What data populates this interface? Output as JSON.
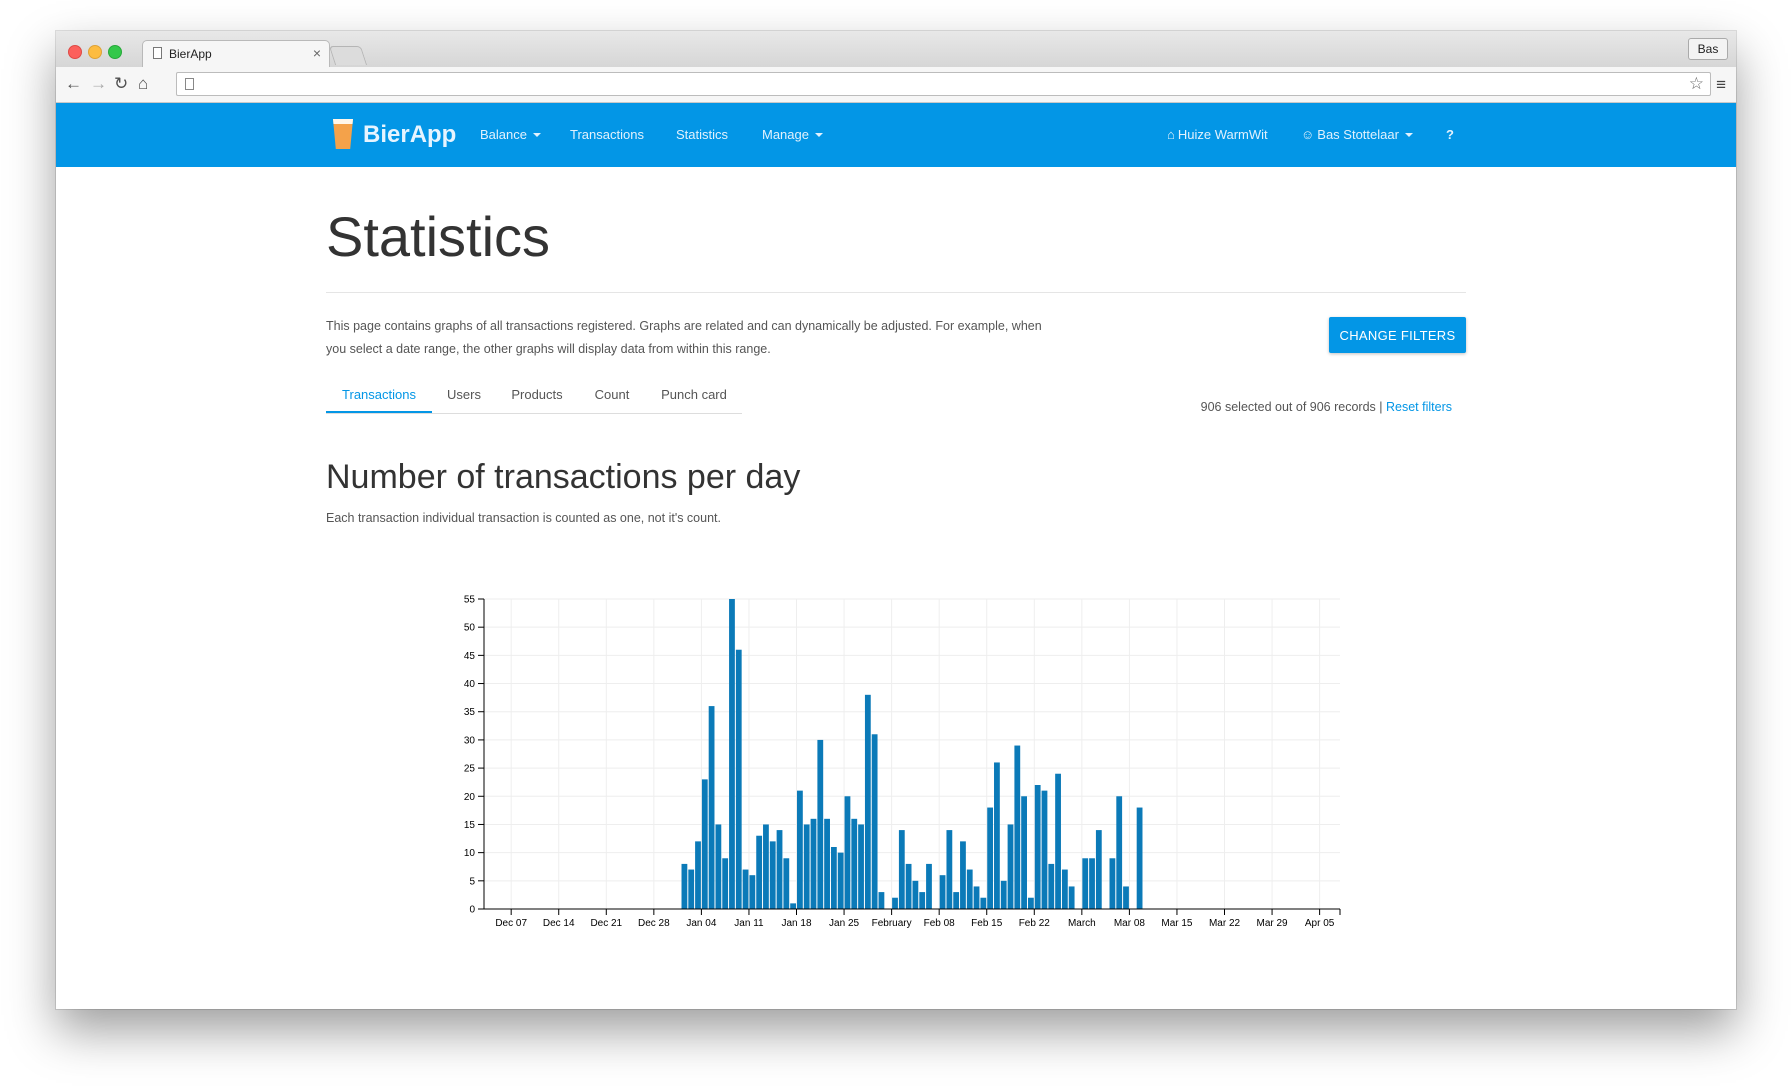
{
  "browser": {
    "tab_title": "BierApp",
    "profile_label": "Bas"
  },
  "navbar": {
    "brand": "BierApp",
    "links": {
      "balance": "Balance",
      "transactions": "Transactions",
      "statistics": "Statistics",
      "manage": "Manage"
    },
    "house": "Huize WarmWit",
    "user": "Bas Stottelaar",
    "help_icon": "question-circle-icon"
  },
  "page": {
    "title": "Statistics",
    "intro": "This page contains graphs of all transactions registered. Graphs are related and can dynamically be adjusted. For example, when you select a date range, the other graphs will display data from within this range.",
    "change_filters": "CHANGE FILTERS",
    "tabs": [
      "Transactions",
      "Users",
      "Products",
      "Count",
      "Punch card"
    ],
    "active_tab": "Transactions",
    "records_text": "906 selected out of 906 records",
    "records_sep": "|",
    "reset_filters": "Reset filters",
    "section_title": "Number of transactions per day",
    "section_sub": "Each transaction individual transaction is counted as one, not it's count."
  },
  "colors": {
    "accent": "#0396e6",
    "bar": "#0b7ab8"
  },
  "chart_data": {
    "type": "bar",
    "title": "",
    "xlabel": "",
    "ylabel": "",
    "ylim": [
      0,
      55
    ],
    "yticks": [
      0,
      5,
      10,
      15,
      20,
      25,
      30,
      35,
      40,
      45,
      50,
      55
    ],
    "grid": true,
    "x_range": [
      "2014-12-03",
      "2015-04-08"
    ],
    "x_ticks": [
      {
        "date": "2014-12-07",
        "label": "Dec 07"
      },
      {
        "date": "2014-12-14",
        "label": "Dec 14"
      },
      {
        "date": "2014-12-21",
        "label": "Dec 21"
      },
      {
        "date": "2014-12-28",
        "label": "Dec 28"
      },
      {
        "date": "2015-01-04",
        "label": "Jan 04"
      },
      {
        "date": "2015-01-11",
        "label": "Jan 11"
      },
      {
        "date": "2015-01-18",
        "label": "Jan 18"
      },
      {
        "date": "2015-01-25",
        "label": "Jan 25"
      },
      {
        "date": "2015-02-01",
        "label": "February"
      },
      {
        "date": "2015-02-08",
        "label": "Feb 08"
      },
      {
        "date": "2015-02-15",
        "label": "Feb 15"
      },
      {
        "date": "2015-02-22",
        "label": "Feb 22"
      },
      {
        "date": "2015-03-01",
        "label": "March"
      },
      {
        "date": "2015-03-08",
        "label": "Mar 08"
      },
      {
        "date": "2015-03-15",
        "label": "Mar 15"
      },
      {
        "date": "2015-03-22",
        "label": "Mar 22"
      },
      {
        "date": "2015-03-29",
        "label": "Mar 29"
      },
      {
        "date": "2015-04-05",
        "label": "Apr 05"
      }
    ],
    "x": [
      "2015-01-01",
      "2015-01-02",
      "2015-01-03",
      "2015-01-04",
      "2015-01-05",
      "2015-01-06",
      "2015-01-07",
      "2015-01-08",
      "2015-01-09",
      "2015-01-10",
      "2015-01-11",
      "2015-01-12",
      "2015-01-13",
      "2015-01-14",
      "2015-01-15",
      "2015-01-16",
      "2015-01-17",
      "2015-01-18",
      "2015-01-19",
      "2015-01-20",
      "2015-01-21",
      "2015-01-22",
      "2015-01-23",
      "2015-01-24",
      "2015-01-25",
      "2015-01-26",
      "2015-01-27",
      "2015-01-28",
      "2015-01-29",
      "2015-01-30",
      "2015-01-31",
      "2015-02-01",
      "2015-02-02",
      "2015-02-03",
      "2015-02-04",
      "2015-02-05",
      "2015-02-06",
      "2015-02-07",
      "2015-02-08",
      "2015-02-09",
      "2015-02-10",
      "2015-02-11",
      "2015-02-12",
      "2015-02-13",
      "2015-02-14",
      "2015-02-15",
      "2015-02-16",
      "2015-02-17",
      "2015-02-18",
      "2015-02-19",
      "2015-02-20",
      "2015-02-21",
      "2015-02-22",
      "2015-02-23",
      "2015-02-24",
      "2015-02-25",
      "2015-02-26",
      "2015-02-27",
      "2015-02-28",
      "2015-03-01",
      "2015-03-02",
      "2015-03-03",
      "2015-03-04",
      "2015-03-05",
      "2015-03-06",
      "2015-03-07",
      "2015-03-08",
      "2015-03-09"
    ],
    "values": [
      8,
      7,
      12,
      23,
      36,
      15,
      9,
      55,
      46,
      7,
      6,
      13,
      15,
      12,
      14,
      9,
      1,
      21,
      15,
      16,
      30,
      16,
      11,
      10,
      20,
      16,
      15,
      38,
      31,
      3,
      0,
      2,
      14,
      8,
      5,
      3,
      8,
      0,
      6,
      14,
      3,
      12,
      7,
      4,
      2,
      18,
      26,
      5,
      15,
      29,
      20,
      2,
      22,
      21,
      8,
      24,
      7,
      4,
      0,
      9,
      9,
      14,
      0,
      9,
      20,
      4,
      0,
      18
    ]
  }
}
